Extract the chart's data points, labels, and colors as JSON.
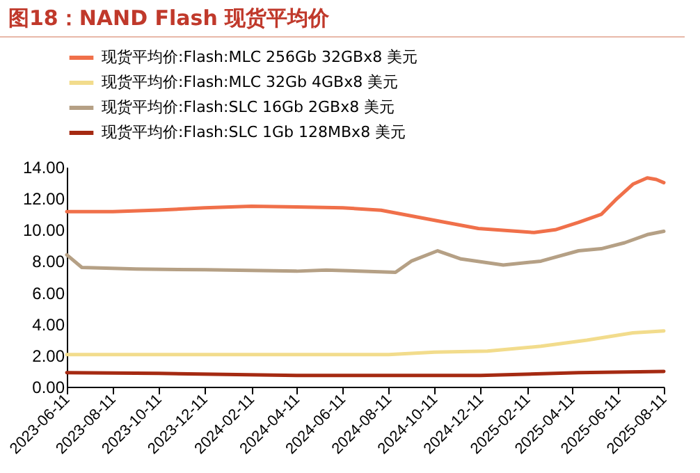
{
  "chart_data": {
    "type": "line",
    "title": "图18：NAND Flash 现货平均价",
    "series": [
      {
        "name": "现货平均价:Flash:MLC 256Gb 32GBx8 美元",
        "color": "#f0704a",
        "x": [
          "2023-06-11",
          "2023-08-11",
          "2023-10-11",
          "2023-12-11",
          "2024-02-11",
          "2024-04-11",
          "2024-06-11",
          "2024-08-01",
          "2024-10-11",
          "2024-12-08",
          "2025-02-20",
          "2025-03-20",
          "2025-04-20",
          "2025-05-20",
          "2025-06-08",
          "2025-07-01",
          "2025-07-20",
          "2025-08-01",
          "2025-08-11"
        ],
        "values": [
          11.15,
          11.15,
          11.25,
          11.4,
          11.5,
          11.45,
          11.4,
          11.24,
          10.6,
          10.08,
          9.82,
          10.0,
          10.47,
          10.98,
          11.9,
          12.9,
          13.3,
          13.2,
          13.0
        ]
      },
      {
        "name": "现货平均价:Flash:MLC 32Gb 4GBx8 美元",
        "color": "#f2dc8c",
        "x": [
          "2023-06-11",
          "2023-12-11",
          "2024-06-11",
          "2024-08-11",
          "2024-10-11",
          "2024-12-20",
          "2025-03-01",
          "2025-05-01",
          "2025-07-01",
          "2025-08-11"
        ],
        "values": [
          2.05,
          2.05,
          2.05,
          2.05,
          2.2,
          2.27,
          2.58,
          2.97,
          3.43,
          3.56
        ]
      },
      {
        "name": "现货平均价:Flash:SLC 16Gb 2GBx8 美元",
        "color": "#b5a085",
        "x": [
          "2023-06-11",
          "2023-07-01",
          "2023-09-11",
          "2023-12-11",
          "2024-04-11",
          "2024-05-20",
          "2024-08-20",
          "2024-09-10",
          "2024-10-15",
          "2024-11-15",
          "2025-01-10",
          "2025-03-01",
          "2025-04-20",
          "2025-05-20",
          "2025-06-20",
          "2025-07-20",
          "2025-08-11"
        ],
        "values": [
          8.4,
          7.6,
          7.5,
          7.45,
          7.36,
          7.43,
          7.29,
          8.0,
          8.66,
          8.14,
          7.75,
          8.0,
          8.66,
          8.79,
          9.17,
          9.69,
          9.9
        ]
      },
      {
        "name": "现货平均价:Flash:SLC 1Gb 128MBx8 美元",
        "color": "#a52a12",
        "x": [
          "2023-06-11",
          "2023-10-11",
          "2024-04-11",
          "2024-06-11",
          "2024-12-11",
          "2025-04-20",
          "2025-08-11"
        ],
        "values": [
          0.9,
          0.85,
          0.72,
          0.72,
          0.72,
          0.9,
          0.98
        ]
      }
    ],
    "xlim": [
      "2023-06-11",
      "2025-08-11"
    ],
    "xticks": [
      "2023-06-11",
      "2023-08-11",
      "2023-10-11",
      "2023-12-11",
      "2024-02-11",
      "2024-04-11",
      "2024-06-11",
      "2024-08-11",
      "2024-10-11",
      "2024-12-11",
      "2025-02-11",
      "2025-04-11",
      "2025-06-11",
      "2025-08-11"
    ],
    "ylim": [
      0,
      14
    ],
    "yticks": [
      {
        "value": 0,
        "label": "0.00"
      },
      {
        "value": 2,
        "label": "2.00"
      },
      {
        "value": 4,
        "label": "4.00"
      },
      {
        "value": 6,
        "label": "6.00"
      },
      {
        "value": 8,
        "label": "8.00"
      },
      {
        "value": 10,
        "label": "10.00"
      },
      {
        "value": 12,
        "label": "12.00"
      },
      {
        "value": 14,
        "label": "14.00"
      }
    ],
    "grid": false,
    "legend": "top",
    "line_style": "solid",
    "marker": "none"
  }
}
